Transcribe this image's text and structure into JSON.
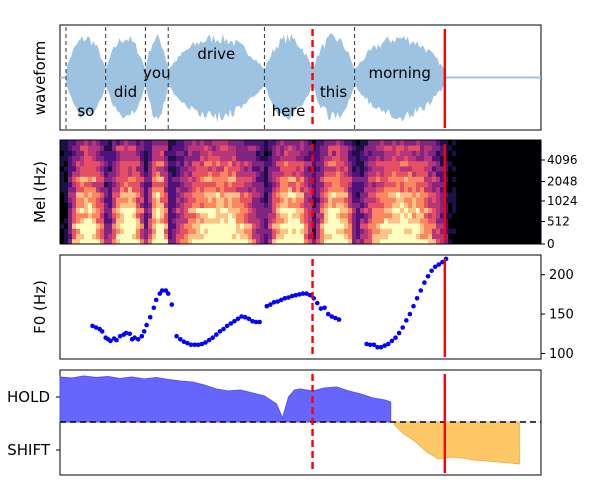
{
  "colors": {
    "waveform": "#9ec3e0",
    "marker": "#ff0000",
    "f0_dots": "#0000ff",
    "hold_fill": "#6666ff",
    "shift_fill": "#ffc766",
    "word_boundary": "#333333"
  },
  "chart_data": [
    {
      "type": "area",
      "panel": "waveform",
      "ylabel": "waveform",
      "words": [
        {
          "text": "so",
          "start": 0.05,
          "end": 0.38
        },
        {
          "text": "did",
          "start": 0.38,
          "end": 0.71
        },
        {
          "text": "you",
          "start": 0.71,
          "end": 0.9
        },
        {
          "text": "drive",
          "start": 0.9,
          "end": 1.7
        },
        {
          "text": "here",
          "start": 1.7,
          "end": 2.1
        },
        {
          "text": "this",
          "start": 2.1,
          "end": 2.45
        },
        {
          "text": "morning",
          "start": 2.45,
          "end": 3.2
        }
      ],
      "dashed_marker_time": 2.1,
      "solid_marker_time": 3.2
    },
    {
      "type": "heatmap",
      "panel": "mel",
      "ylabel": "Mel (Hz)",
      "yticks": [
        "0",
        "512",
        "1024",
        "2048",
        "4096"
      ],
      "dashed_marker_time": 2.1,
      "solid_marker_time": 3.2
    },
    {
      "type": "scatter",
      "panel": "f0",
      "ylabel": "F0 (Hz)",
      "yticks": [
        100,
        150,
        200
      ],
      "ylim": [
        93,
        225
      ],
      "segments": [
        {
          "x": [
            0.27,
            0.3,
            0.33,
            0.35,
            0.38,
            0.4,
            0.42,
            0.45,
            0.47,
            0.5,
            0.53,
            0.55,
            0.58,
            0.6,
            0.62
          ],
          "y": [
            135,
            133,
            131,
            128,
            120,
            118,
            116,
            119,
            117,
            122,
            124,
            126,
            125,
            118,
            120
          ]
        },
        {
          "x": [
            0.65,
            0.68,
            0.7,
            0.72,
            0.75,
            0.78,
            0.8,
            0.83,
            0.85,
            0.88,
            0.9,
            0.93
          ],
          "y": [
            118,
            122,
            128,
            136,
            146,
            158,
            168,
            176,
            180,
            180,
            176,
            162
          ]
        },
        {
          "x": [
            0.97,
            1.0,
            1.03,
            1.06,
            1.09,
            1.12,
            1.15,
            1.18,
            1.21,
            1.24,
            1.27,
            1.3,
            1.33,
            1.36,
            1.39,
            1.42,
            1.45,
            1.48,
            1.51,
            1.54,
            1.57,
            1.6,
            1.63,
            1.66
          ],
          "y": [
            122,
            118,
            115,
            113,
            111,
            111,
            111,
            112,
            114,
            117,
            120,
            124,
            128,
            131,
            135,
            138,
            141,
            144,
            147,
            146,
            144,
            141,
            140,
            140
          ]
        },
        {
          "x": [
            1.72,
            1.75,
            1.78,
            1.81,
            1.84,
            1.87,
            1.9,
            1.93,
            1.96,
            1.99,
            2.02,
            2.05,
            2.08,
            2.11,
            2.14,
            2.17,
            2.2,
            2.23,
            2.26,
            2.29,
            2.32
          ],
          "y": [
            160,
            162,
            165,
            166,
            168,
            170,
            171,
            173,
            174,
            175,
            176,
            176,
            174,
            170,
            164,
            157,
            158,
            150,
            147,
            145,
            143
          ]
        },
        {
          "x": [
            2.55,
            2.58,
            2.61,
            2.64,
            2.67,
            2.7,
            2.73,
            2.76,
            2.79,
            2.82,
            2.85,
            2.88,
            2.91,
            2.94,
            2.97,
            3.0,
            3.03,
            3.06,
            3.09,
            3.12,
            3.15,
            3.18,
            3.21
          ],
          "y": [
            112,
            111,
            111,
            108,
            108,
            110,
            112,
            116,
            120,
            126,
            133,
            142,
            150,
            160,
            170,
            180,
            190,
            198,
            205,
            210,
            213,
            216,
            220
          ]
        }
      ],
      "dashed_marker_time": 2.1,
      "solid_marker_time": 3.2
    },
    {
      "type": "area",
      "panel": "turn_taking",
      "yticks": [
        "HOLD",
        "SHIFT"
      ],
      "ylim": [
        -1,
        1
      ],
      "hold": {
        "x": [
          0.0,
          0.1,
          0.2,
          0.3,
          0.4,
          0.5,
          0.6,
          0.7,
          0.8,
          0.9,
          1.0,
          1.1,
          1.2,
          1.3,
          1.4,
          1.5,
          1.6,
          1.7,
          1.8,
          1.85,
          1.9,
          1.95,
          2.0,
          2.1,
          2.2,
          2.3,
          2.4,
          2.5,
          2.6,
          2.7,
          2.75
        ],
        "y": [
          0.9,
          0.88,
          0.92,
          0.89,
          0.91,
          0.87,
          0.9,
          0.86,
          0.89,
          0.85,
          0.82,
          0.8,
          0.74,
          0.66,
          0.62,
          0.64,
          0.58,
          0.52,
          0.36,
          0.08,
          0.5,
          0.64,
          0.66,
          0.62,
          0.68,
          0.7,
          0.62,
          0.56,
          0.48,
          0.44,
          0.4
        ]
      },
      "shift": {
        "x": [
          2.78,
          2.85,
          2.95,
          3.05,
          3.15,
          3.25,
          3.35,
          3.45,
          3.55,
          3.65,
          3.75,
          3.82
        ],
        "y": [
          -0.05,
          -0.22,
          -0.38,
          -0.6,
          -0.74,
          -0.7,
          -0.72,
          -0.76,
          -0.78,
          -0.8,
          -0.82,
          -0.84
        ]
      },
      "threshold": 0,
      "dashed_marker_time": 2.1,
      "solid_marker_time": 3.2
    }
  ]
}
